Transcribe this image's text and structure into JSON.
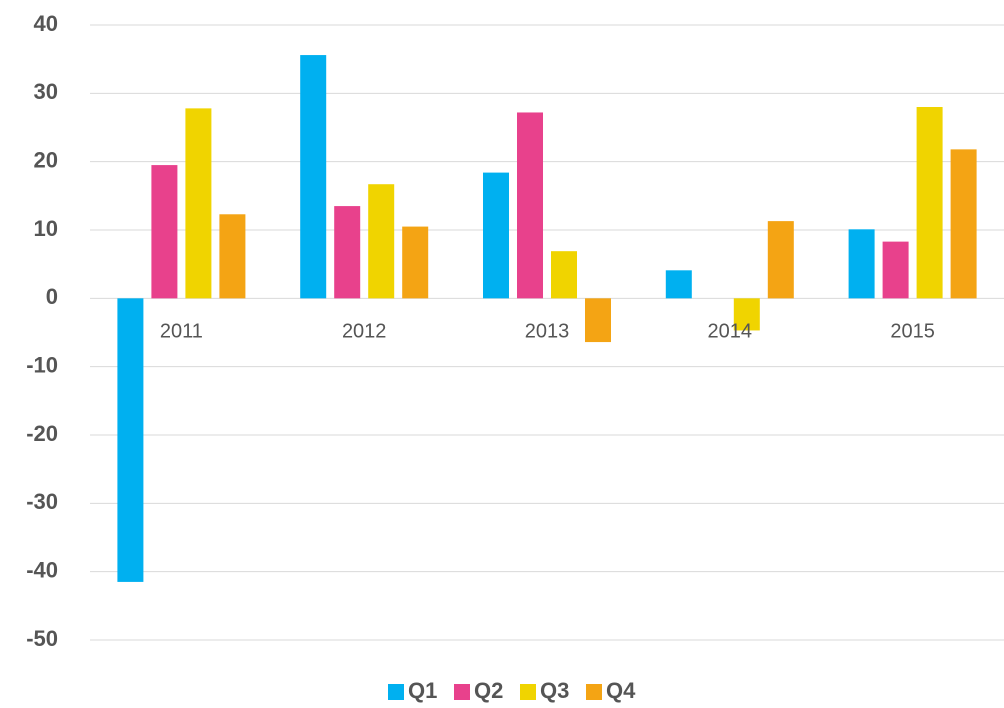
{
  "chart_data": {
    "type": "bar",
    "categories": [
      "2011",
      "2012",
      "2013",
      "2014",
      "2015"
    ],
    "series": [
      {
        "name": "Q1",
        "color": "#00b0f0",
        "values": [
          -41.5,
          35.6,
          18.4,
          4.1,
          10.1
        ]
      },
      {
        "name": "Q2",
        "color": "#e8418c",
        "values": [
          19.5,
          13.5,
          27.2,
          0,
          8.3
        ]
      },
      {
        "name": "Q3",
        "color": "#f0d400",
        "values": [
          27.8,
          16.7,
          6.9,
          -4.7,
          28.0
        ]
      },
      {
        "name": "Q4",
        "color": "#f4a414",
        "values": [
          12.3,
          10.5,
          -6.4,
          11.3,
          21.8
        ]
      }
    ],
    "ylim": [
      -50,
      40
    ],
    "yticks": [
      -50,
      -40,
      -30,
      -20,
      -10,
      0,
      10,
      20,
      30,
      40
    ],
    "grid": true,
    "legend": "bottom"
  }
}
